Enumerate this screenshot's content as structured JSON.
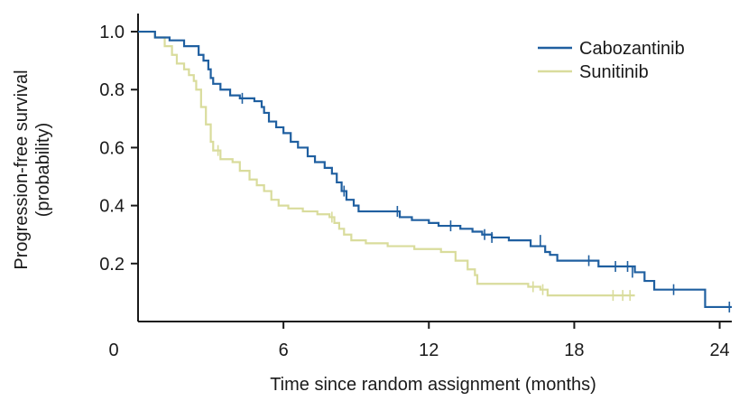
{
  "chart_data": {
    "type": "line",
    "step": true,
    "xlabel": "Time since random assignment (months)",
    "ylabel": "Progression-free survival (probability)",
    "ylabel_lines": [
      "Progression-free survival",
      "(probability)"
    ],
    "xlim": [
      0,
      24.5
    ],
    "ylim": [
      0,
      1.05
    ],
    "xticks": [
      0,
      6,
      12,
      18,
      24
    ],
    "yticks": [
      0.2,
      0.4,
      0.6,
      0.8,
      1.0
    ],
    "ytick_labels": [
      "0.2",
      "0.4",
      "0.6",
      "0.8",
      "1.0"
    ],
    "grid": false,
    "legend_position": "top-right",
    "series": [
      {
        "name": "Cabozantinib",
        "color": "#1f5fa0",
        "steps": [
          [
            0,
            1.0
          ],
          [
            0.7,
            0.98
          ],
          [
            1.3,
            0.97
          ],
          [
            1.9,
            0.95
          ],
          [
            2.5,
            0.92
          ],
          [
            2.7,
            0.9
          ],
          [
            2.9,
            0.87
          ],
          [
            3.0,
            0.84
          ],
          [
            3.1,
            0.82
          ],
          [
            3.4,
            0.8
          ],
          [
            3.8,
            0.78
          ],
          [
            4.2,
            0.77
          ],
          [
            4.8,
            0.76
          ],
          [
            5.1,
            0.74
          ],
          [
            5.2,
            0.72
          ],
          [
            5.4,
            0.69
          ],
          [
            5.7,
            0.67
          ],
          [
            6.0,
            0.65
          ],
          [
            6.3,
            0.62
          ],
          [
            6.6,
            0.6
          ],
          [
            7.0,
            0.57
          ],
          [
            7.3,
            0.55
          ],
          [
            7.7,
            0.53
          ],
          [
            8.0,
            0.51
          ],
          [
            8.2,
            0.48
          ],
          [
            8.4,
            0.45
          ],
          [
            8.6,
            0.42
          ],
          [
            8.9,
            0.4
          ],
          [
            9.1,
            0.38
          ],
          [
            10.8,
            0.36
          ],
          [
            11.3,
            0.35
          ],
          [
            12.0,
            0.34
          ],
          [
            12.4,
            0.33
          ],
          [
            13.3,
            0.32
          ],
          [
            13.8,
            0.31
          ],
          [
            14.2,
            0.3
          ],
          [
            14.6,
            0.29
          ],
          [
            15.3,
            0.28
          ],
          [
            16.2,
            0.26
          ],
          [
            16.8,
            0.24
          ],
          [
            17.0,
            0.23
          ],
          [
            17.3,
            0.21
          ],
          [
            19.0,
            0.19
          ],
          [
            20.5,
            0.17
          ],
          [
            20.9,
            0.14
          ],
          [
            21.3,
            0.11
          ],
          [
            22.7,
            0.11
          ],
          [
            23.4,
            0.05
          ],
          [
            24.5,
            0.05
          ]
        ],
        "censored": [
          [
            4.3,
            0.77
          ],
          [
            8.5,
            0.45
          ],
          [
            10.7,
            0.38
          ],
          [
            12.9,
            0.33
          ],
          [
            14.3,
            0.3
          ],
          [
            14.6,
            0.29
          ],
          [
            16.6,
            0.28
          ],
          [
            18.6,
            0.21
          ],
          [
            19.7,
            0.19
          ],
          [
            20.2,
            0.19
          ],
          [
            20.4,
            0.17
          ],
          [
            22.1,
            0.11
          ],
          [
            24.4,
            0.05
          ]
        ]
      },
      {
        "name": "Sunitinib",
        "color": "#d9dc9c",
        "steps": [
          [
            0,
            1.0
          ],
          [
            0.7,
            0.98
          ],
          [
            1.1,
            0.95
          ],
          [
            1.4,
            0.92
          ],
          [
            1.6,
            0.89
          ],
          [
            1.9,
            0.87
          ],
          [
            2.1,
            0.85
          ],
          [
            2.3,
            0.83
          ],
          [
            2.4,
            0.8
          ],
          [
            2.6,
            0.74
          ],
          [
            2.8,
            0.68
          ],
          [
            3.0,
            0.62
          ],
          [
            3.1,
            0.59
          ],
          [
            3.4,
            0.56
          ],
          [
            3.9,
            0.55
          ],
          [
            4.2,
            0.52
          ],
          [
            4.6,
            0.49
          ],
          [
            4.9,
            0.47
          ],
          [
            5.2,
            0.45
          ],
          [
            5.5,
            0.42
          ],
          [
            5.8,
            0.4
          ],
          [
            6.2,
            0.39
          ],
          [
            6.8,
            0.38
          ],
          [
            7.4,
            0.37
          ],
          [
            7.9,
            0.36
          ],
          [
            8.1,
            0.34
          ],
          [
            8.3,
            0.32
          ],
          [
            8.5,
            0.3
          ],
          [
            8.8,
            0.28
          ],
          [
            9.4,
            0.27
          ],
          [
            10.3,
            0.26
          ],
          [
            11.4,
            0.25
          ],
          [
            12.5,
            0.24
          ],
          [
            13.1,
            0.21
          ],
          [
            13.6,
            0.18
          ],
          [
            13.9,
            0.16
          ],
          [
            14.0,
            0.13
          ],
          [
            16.1,
            0.12
          ],
          [
            16.6,
            0.11
          ],
          [
            16.9,
            0.09
          ],
          [
            20.5,
            0.09
          ]
        ],
        "censored": [
          [
            3.3,
            0.59
          ],
          [
            8.0,
            0.36
          ],
          [
            16.3,
            0.12
          ],
          [
            16.7,
            0.11
          ],
          [
            19.6,
            0.09
          ],
          [
            20.0,
            0.09
          ],
          [
            20.3,
            0.09
          ]
        ]
      }
    ]
  }
}
